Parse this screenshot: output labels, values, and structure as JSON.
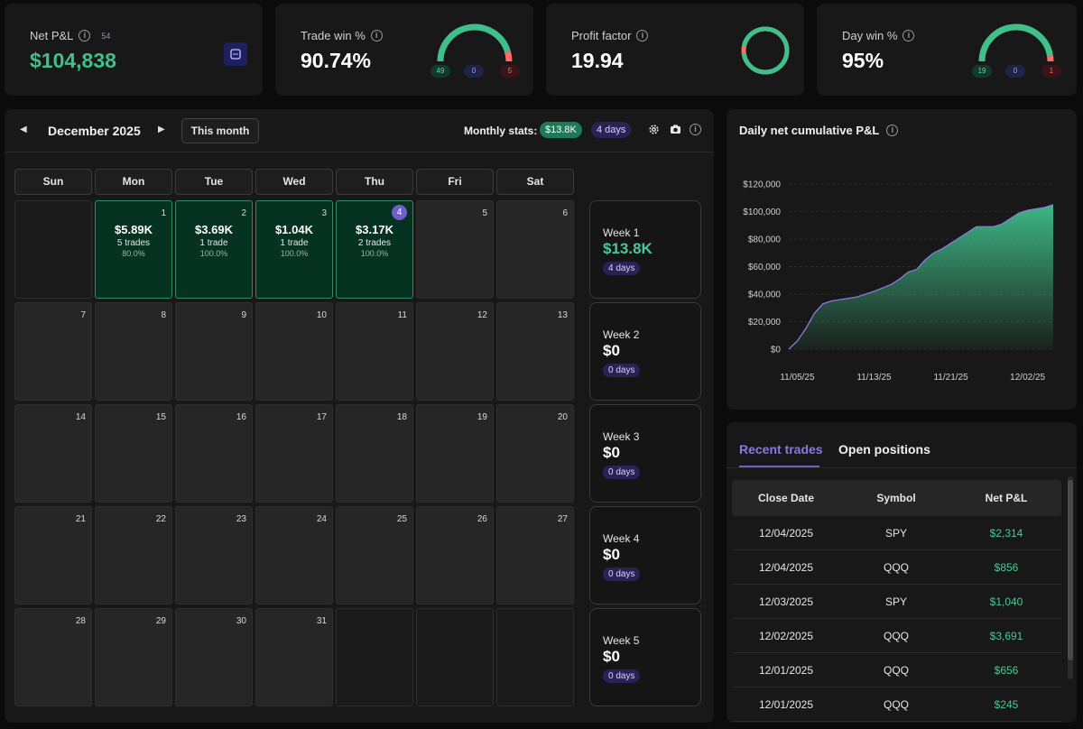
{
  "kpis": {
    "net_pnl": {
      "label": "Net P&L",
      "count": "54",
      "value": "$104,838"
    },
    "trade_win": {
      "label": "Trade win %",
      "value": "90.74%",
      "wins": "49",
      "breakeven": "0",
      "losses": "5",
      "win_fraction": 0.9074
    },
    "profit_factor": {
      "label": "Profit factor",
      "value": "19.94",
      "fraction": 0.952
    },
    "day_win": {
      "label": "Day win %",
      "value": "95%",
      "wins": "19",
      "breakeven": "0",
      "losses": "1",
      "win_fraction": 0.95
    }
  },
  "colors": {
    "green": "#3fbf8a",
    "red": "#ff6b6b",
    "purple": "#6f5fc8",
    "bg": "#0b0b0b",
    "card": "#181818"
  },
  "calendar": {
    "month_title": "December 2025",
    "this_month_label": "This month",
    "monthly_stats_label": "Monthly stats:",
    "monthly_pnl": "$13.8K",
    "monthly_days": "4 days",
    "weekdays": [
      "Sun",
      "Mon",
      "Tue",
      "Wed",
      "Thu",
      "Fri",
      "Sat"
    ],
    "days": {
      "1": {
        "pnl": "$5.89K",
        "trades": "5 trades",
        "win": "80.0%"
      },
      "2": {
        "pnl": "$3.69K",
        "trades": "1 trade",
        "win": "100.0%"
      },
      "3": {
        "pnl": "$1.04K",
        "trades": "1 trade",
        "win": "100.0%"
      },
      "4": {
        "pnl": "$3.17K",
        "trades": "2 trades",
        "win": "100.0%"
      }
    },
    "today": 4,
    "weeks": [
      {
        "label": "Week 1",
        "value": "$13.8K",
        "days": "4 days"
      },
      {
        "label": "Week 2",
        "value": "$0",
        "days": "0 days"
      },
      {
        "label": "Week 3",
        "value": "$0",
        "days": "0 days"
      },
      {
        "label": "Week 4",
        "value": "$0",
        "days": "0 days"
      },
      {
        "label": "Week 5",
        "value": "$0",
        "days": "0 days"
      }
    ]
  },
  "chart_title": "Daily net cumulative P&L",
  "chart_data": {
    "type": "area",
    "title": "",
    "xlabel": "",
    "ylabel": "",
    "ylim": [
      0,
      120000
    ],
    "yticks": [
      "$0",
      "$20,000",
      "$40,000",
      "$60,000",
      "$80,000",
      "$100,000",
      "$120,000"
    ],
    "ytick_values": [
      0,
      20000,
      40000,
      60000,
      80000,
      100000,
      120000
    ],
    "xticks": [
      "11/05/25",
      "11/13/25",
      "11/21/25",
      "12/02/25"
    ],
    "xtick_index": [
      1,
      10,
      19,
      28
    ],
    "x": [
      0,
      1,
      2,
      3,
      4,
      5,
      6,
      7,
      8,
      9,
      10,
      11,
      12,
      13,
      14,
      15,
      16,
      17,
      18,
      19,
      20,
      21,
      22,
      23,
      24,
      25,
      26,
      27,
      28,
      29,
      30,
      31
    ],
    "values": [
      0,
      6000,
      15000,
      26000,
      33000,
      35000,
      36000,
      37000,
      38000,
      40000,
      42000,
      44500,
      47000,
      51000,
      56000,
      58000,
      65000,
      70000,
      73000,
      77000,
      81000,
      85000,
      89000,
      89000,
      89000,
      91000,
      95000,
      99000,
      101000,
      102000,
      103000,
      105000
    ],
    "grid": true,
    "color": "#3fbf8a"
  },
  "trades": {
    "tab_recent": "Recent trades",
    "tab_open": "Open positions",
    "headers": [
      "Close Date",
      "Symbol",
      "Net P&L"
    ],
    "rows": [
      [
        "12/04/2025",
        "SPY",
        "$2,314"
      ],
      [
        "12/04/2025",
        "QQQ",
        "$856"
      ],
      [
        "12/03/2025",
        "SPY",
        "$1,040"
      ],
      [
        "12/02/2025",
        "QQQ",
        "$3,691"
      ],
      [
        "12/01/2025",
        "QQQ",
        "$656"
      ],
      [
        "12/01/2025",
        "QQQ",
        "$245"
      ]
    ]
  }
}
